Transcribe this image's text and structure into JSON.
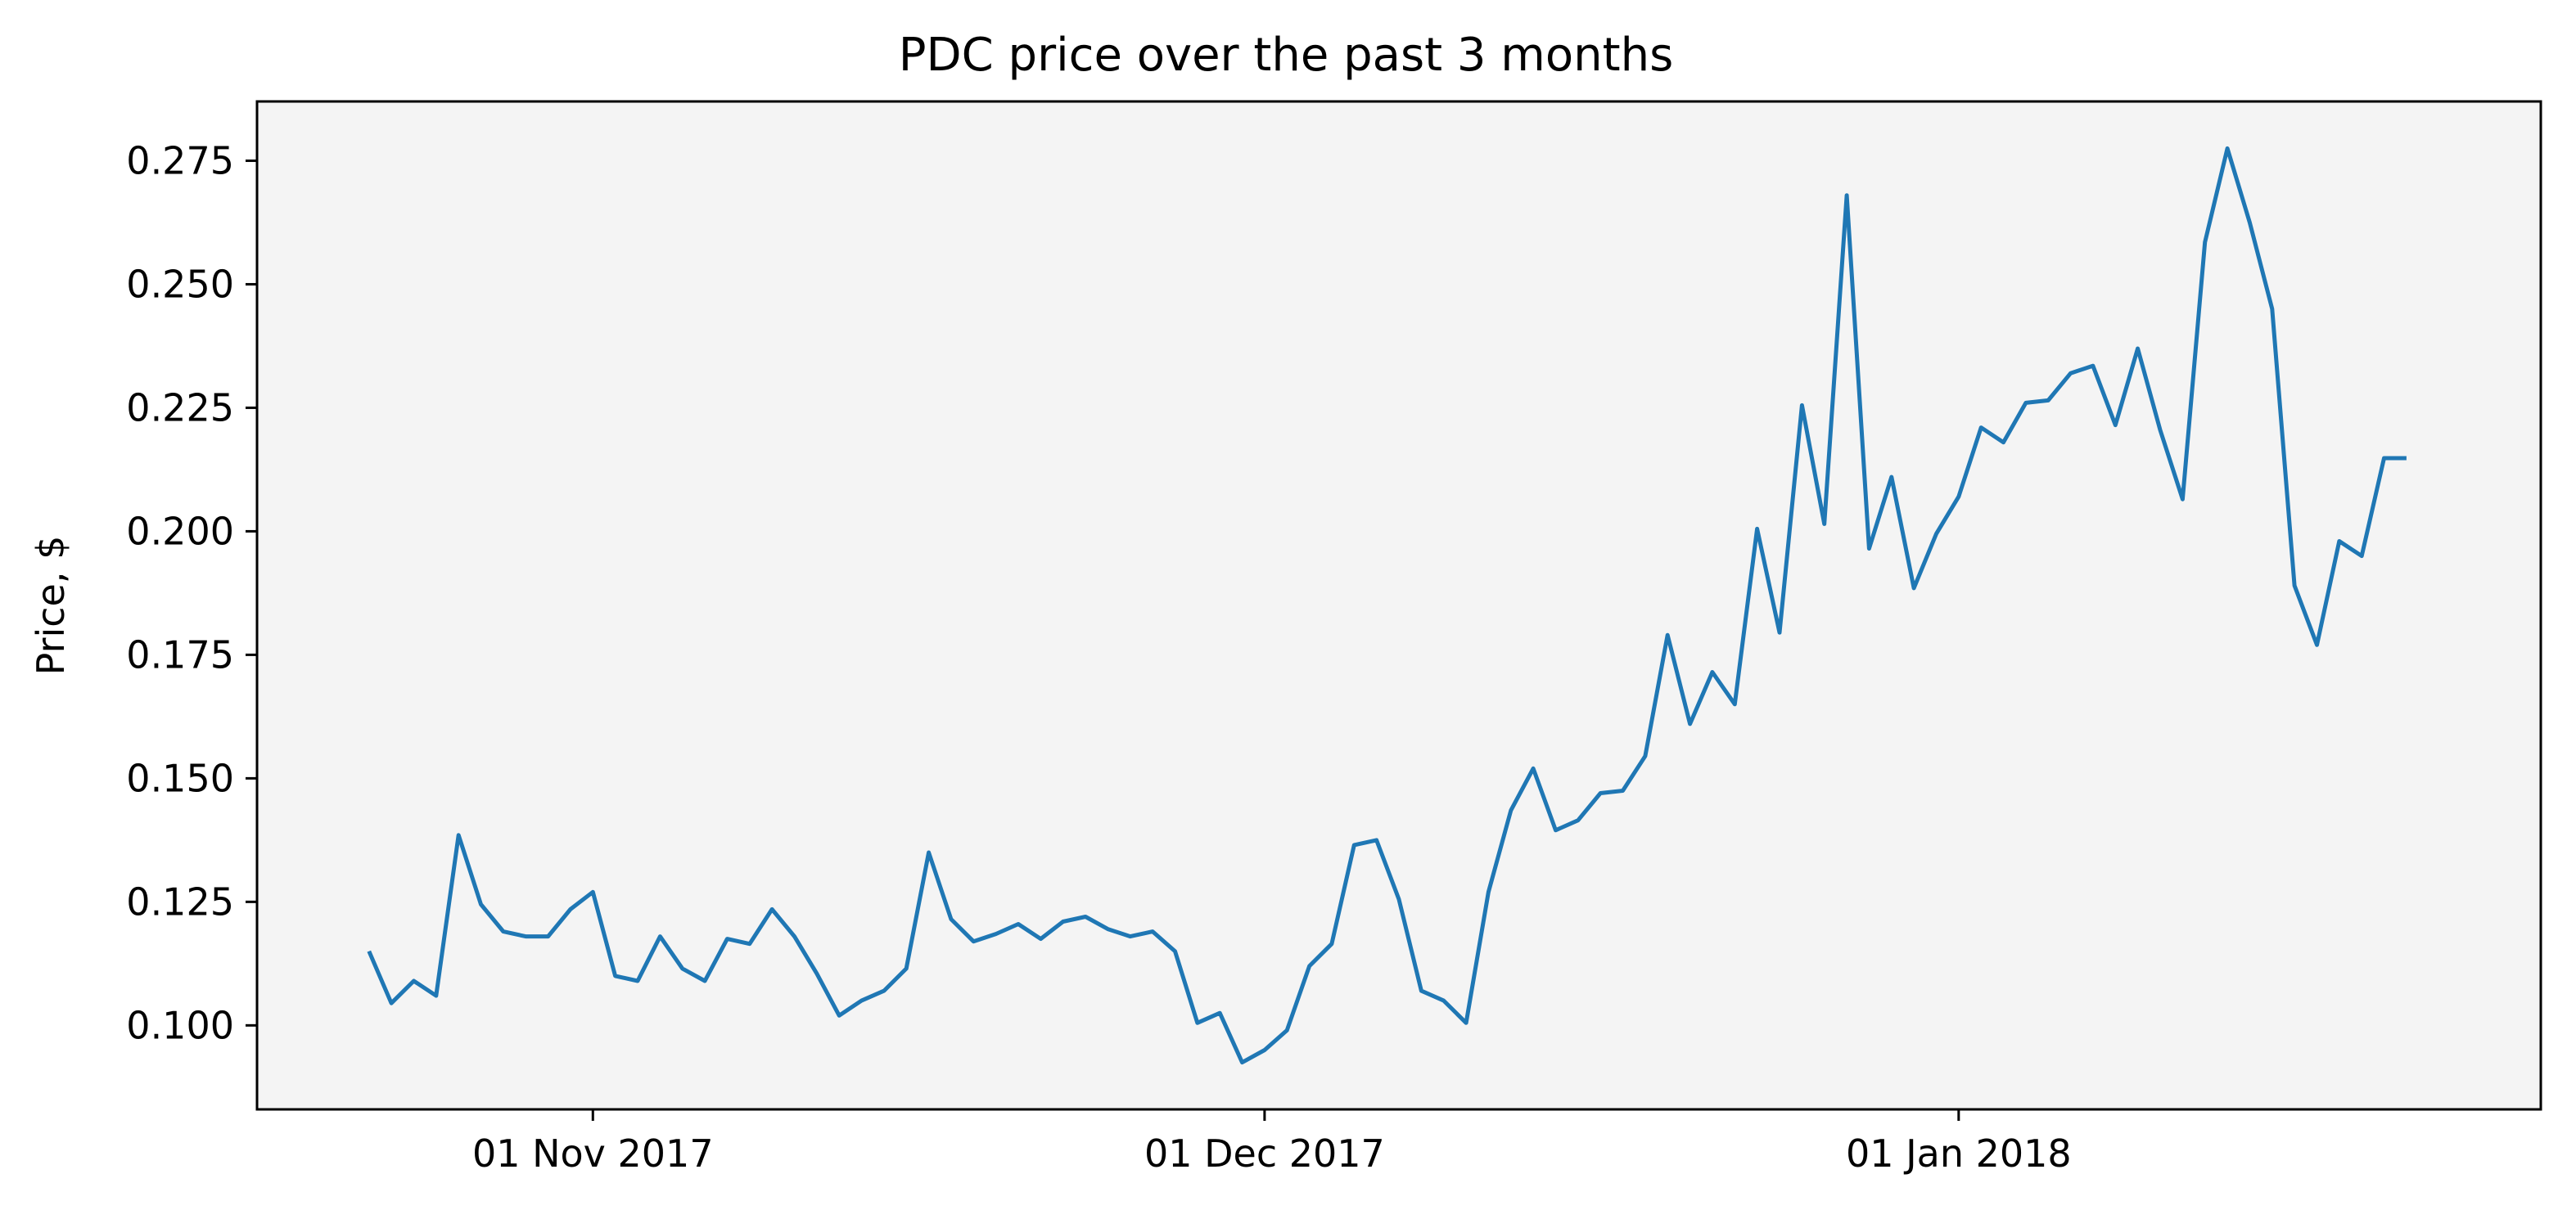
{
  "chart_data": {
    "type": "line",
    "title": "PDC price over the past 3 months",
    "xlabel": "",
    "ylabel": "Price, $",
    "x_tick_labels": [
      "01 Nov 2017",
      "01 Dec 2017",
      "01 Jan 2018"
    ],
    "x_tick_dates": [
      "2017-11-01",
      "2017-12-01",
      "2018-01-01"
    ],
    "y_ticks": [
      0.1,
      0.125,
      0.15,
      0.175,
      0.2,
      0.225,
      0.25,
      0.275
    ],
    "y_tick_labels": [
      "0.100",
      "0.125",
      "0.150",
      "0.175",
      "0.200",
      "0.225",
      "0.250",
      "0.275"
    ],
    "xlim": [
      "2017-10-17",
      "2018-01-27"
    ],
    "ylim": [
      0.083,
      0.287
    ],
    "grid": false,
    "colors": {
      "line": "#1f77b4",
      "plot_background": "#f4f4f4"
    },
    "series": [
      {
        "x": [
          "2017-10-22",
          "2017-10-23",
          "2017-10-24",
          "2017-10-25",
          "2017-10-26",
          "2017-10-27",
          "2017-10-28",
          "2017-10-29",
          "2017-10-30",
          "2017-10-31",
          "2017-11-01",
          "2017-11-02",
          "2017-11-03",
          "2017-11-04",
          "2017-11-05",
          "2017-11-06",
          "2017-11-07",
          "2017-11-08",
          "2017-11-09",
          "2017-11-10",
          "2017-11-11",
          "2017-11-12",
          "2017-11-13",
          "2017-11-14",
          "2017-11-15",
          "2017-11-16",
          "2017-11-17",
          "2017-11-18",
          "2017-11-19",
          "2017-11-20",
          "2017-11-21",
          "2017-11-22",
          "2017-11-23",
          "2017-11-24",
          "2017-11-25",
          "2017-11-26",
          "2017-11-27",
          "2017-11-28",
          "2017-11-29",
          "2017-11-30",
          "2017-12-01",
          "2017-12-02",
          "2017-12-03",
          "2017-12-04",
          "2017-12-05",
          "2017-12-06",
          "2017-12-07",
          "2017-12-08",
          "2017-12-09",
          "2017-12-10",
          "2017-12-11",
          "2017-12-12",
          "2017-12-13",
          "2017-12-14",
          "2017-12-15",
          "2017-12-16",
          "2017-12-17",
          "2017-12-18",
          "2017-12-19",
          "2017-12-20",
          "2017-12-21",
          "2017-12-22",
          "2017-12-23",
          "2017-12-24",
          "2017-12-25",
          "2017-12-26",
          "2017-12-27",
          "2017-12-28",
          "2017-12-29",
          "2017-12-30",
          "2017-12-31",
          "2018-01-01",
          "2018-01-02",
          "2018-01-03",
          "2018-01-04",
          "2018-01-05",
          "2018-01-06",
          "2018-01-07",
          "2018-01-08",
          "2018-01-09",
          "2018-01-10",
          "2018-01-11",
          "2018-01-12",
          "2018-01-13",
          "2018-01-14",
          "2018-01-15",
          "2018-01-16",
          "2018-01-17",
          "2018-01-18",
          "2018-01-19",
          "2018-01-20",
          "2018-01-21"
        ],
        "values": [
          0.115,
          0.1045,
          0.109,
          0.106,
          0.1385,
          0.1245,
          0.119,
          0.118,
          0.118,
          0.1235,
          0.127,
          0.11,
          0.109,
          0.118,
          0.1115,
          0.109,
          0.1175,
          0.1165,
          0.1235,
          0.118,
          0.1105,
          0.102,
          0.105,
          0.107,
          0.1115,
          0.135,
          0.1215,
          0.117,
          0.1185,
          0.1205,
          0.1175,
          0.121,
          0.122,
          0.1195,
          0.118,
          0.119,
          0.115,
          0.1005,
          0.1025,
          0.0925,
          0.095,
          0.099,
          0.112,
          0.1165,
          0.1365,
          0.1375,
          0.1255,
          0.107,
          0.105,
          0.1005,
          0.127,
          0.1435,
          0.152,
          0.1395,
          0.1415,
          0.147,
          0.1475,
          0.1545,
          0.179,
          0.161,
          0.1715,
          0.165,
          0.2005,
          0.1795,
          0.2255,
          0.2015,
          0.268,
          0.1965,
          0.211,
          0.1885,
          0.1995,
          0.207,
          0.221,
          0.218,
          0.226,
          0.2265,
          0.232,
          0.2335,
          0.2215,
          0.237,
          0.2205,
          0.2065,
          0.2585,
          0.2775,
          0.2625,
          0.245,
          0.189,
          0.177,
          0.198,
          0.195,
          0.2148,
          0.2148
        ]
      }
    ]
  }
}
